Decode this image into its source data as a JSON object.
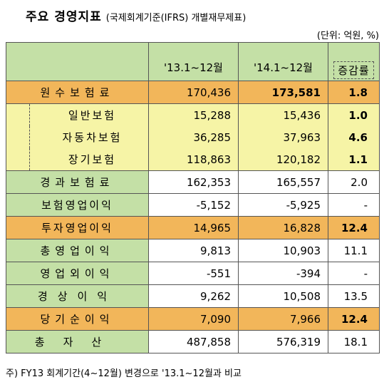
{
  "header": {
    "title": "주요 경영지표",
    "subtitle": "(국제회계기준(IFRS) 개별재무제표)",
    "unit": "(단위: 억원, %)"
  },
  "columns": {
    "period1": "'13.1~12월",
    "period2": "'14.1~12월",
    "rate": "증감률"
  },
  "rows": [
    {
      "name": "원수보험료",
      "v1": "170,436",
      "v2": "173,581",
      "rate": "1.8",
      "style": "orange",
      "bold_v2": true,
      "bold_rate": true
    },
    {
      "name": "일반보험",
      "v1": "15,288",
      "v2": "15,436",
      "rate": "1.0",
      "style": "yellow",
      "sub": true,
      "bold_rate": true
    },
    {
      "name": "자동차보험",
      "v1": "36,285",
      "v2": "37,963",
      "rate": "4.6",
      "style": "yellow",
      "sub": true,
      "bold_rate": true
    },
    {
      "name": "장기보험",
      "v1": "118,863",
      "v2": "120,182",
      "rate": "1.1",
      "style": "yellow",
      "sub": true,
      "bold_rate": true
    },
    {
      "name": "경과보험료",
      "v1": "162,353",
      "v2": "165,557",
      "rate": "2.0",
      "style": "white"
    },
    {
      "name": "보험영업이익",
      "v1": "-5,152",
      "v2": "-5,925",
      "rate": "-",
      "style": "white"
    },
    {
      "name": "투자영업이익",
      "v1": "14,965",
      "v2": "16,828",
      "rate": "12.4",
      "style": "orange",
      "bold_rate": true
    },
    {
      "name": "총영업이익",
      "v1": "9,813",
      "v2": "10,903",
      "rate": "11.1",
      "style": "white"
    },
    {
      "name": "영업외이익",
      "v1": "-551",
      "v2": "-394",
      "rate": "-",
      "style": "white"
    },
    {
      "name": "경상이익",
      "v1": "9,262",
      "v2": "10,508",
      "rate": "13.5",
      "style": "white"
    },
    {
      "name": "당기순이익",
      "v1": "7,090",
      "v2": "7,966",
      "rate": "12.4",
      "style": "orange",
      "bold_rate": true
    },
    {
      "name": "총자산",
      "v1": "487,858",
      "v2": "576,319",
      "rate": "18.1",
      "style": "white"
    }
  ],
  "note": "주) FY13 회계기간(4~12월) 변경으로 '13.1~12월과 비교",
  "colors": {
    "green": "#c4e0a6",
    "orange": "#f2b65a",
    "yellow": "#f6f4a6"
  }
}
